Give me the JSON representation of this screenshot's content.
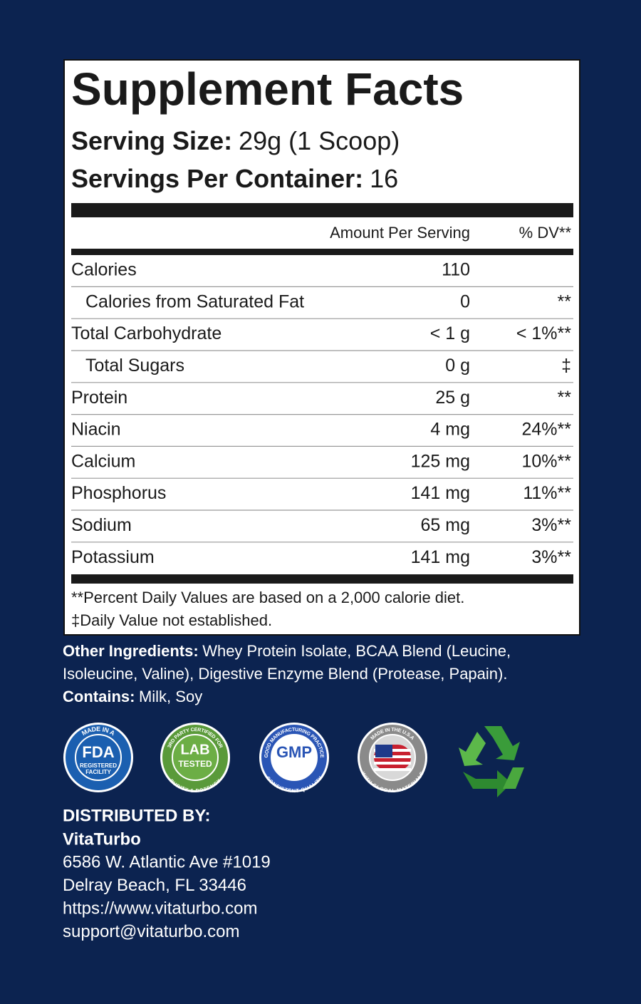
{
  "panel": {
    "title": "Supplement Facts",
    "serving_size_label": "Serving Size:",
    "serving_size": "29g (1 Scoop)",
    "servings_label": "Servings Per Container:",
    "servings": "16",
    "header": {
      "amount": "Amount Per Serving",
      "dv": "% DV**"
    },
    "rows": [
      {
        "name": "Calories",
        "amount": "110"
      },
      {
        "name": "Calories from Saturated Fat",
        "amount": "0",
        "dv": "**",
        "indent": true
      },
      {
        "name": "Total Carbohydrate",
        "amount": "< 1 g",
        "dv": "< 1%**"
      },
      {
        "name": "Total Sugars",
        "amount": "0 g",
        "dv": "‡",
        "indent": true
      },
      {
        "name": "Protein",
        "amount": "25 g",
        "dv": "**"
      },
      {
        "name": "Niacin",
        "amount": "4 mg",
        "dv": "24%**"
      },
      {
        "name": "Calcium",
        "amount": "125 mg",
        "dv": "10%**"
      },
      {
        "name": "Phosphorus",
        "amount": "141 mg",
        "dv": "11%**"
      },
      {
        "name": "Sodium",
        "amount": "65 mg",
        "dv": "3%**"
      },
      {
        "name": "Potassium",
        "amount": "141 mg",
        "dv": "3%**"
      }
    ],
    "footnotes": [
      "**Percent Daily Values are based on a 2,000 calorie diet.",
      "‡Daily Value not established."
    ]
  },
  "ingredients": {
    "other_label": "Other Ingredients:",
    "other_lines": [
      "Whey Protein Isolate, BCAA Blend (Leucine,",
      "Isoleucine, Valine), Digestive Enzyme Blend (Protease, Papain)."
    ],
    "contains_label": "Contains:",
    "contains": "Milk, Soy"
  },
  "badges": [
    {
      "top": "MADE IN A",
      "main": [
        "FDA"
      ],
      "bottom": [
        "REGISTERED",
        "FACILITY"
      ]
    },
    {
      "top": "3RD PARTY CERTIFIED FOR",
      "main": [
        "LAB",
        "TESTED"
      ],
      "bottom": [
        "PURITY & POTENCY"
      ]
    },
    {
      "top": "GOOD MANUFACTURING PRACTICE",
      "main": [
        "GMP"
      ],
      "bottom": [
        "CONSISTENT QUALITY"
      ]
    },
    {
      "top": "MADE IN THE U.S.A",
      "main": [],
      "bottom": [
        "WITH GLOBAL MATERIALS"
      ]
    }
  ],
  "distributor": {
    "label": "DISTRIBUTED BY:",
    "name": "VitaTurbo",
    "lines": [
      "6586 W. Atlantic Ave #1019",
      "Delray Beach, FL 33446",
      "https://www.vitaturbo.com",
      "support@vitaturbo.com"
    ]
  }
}
